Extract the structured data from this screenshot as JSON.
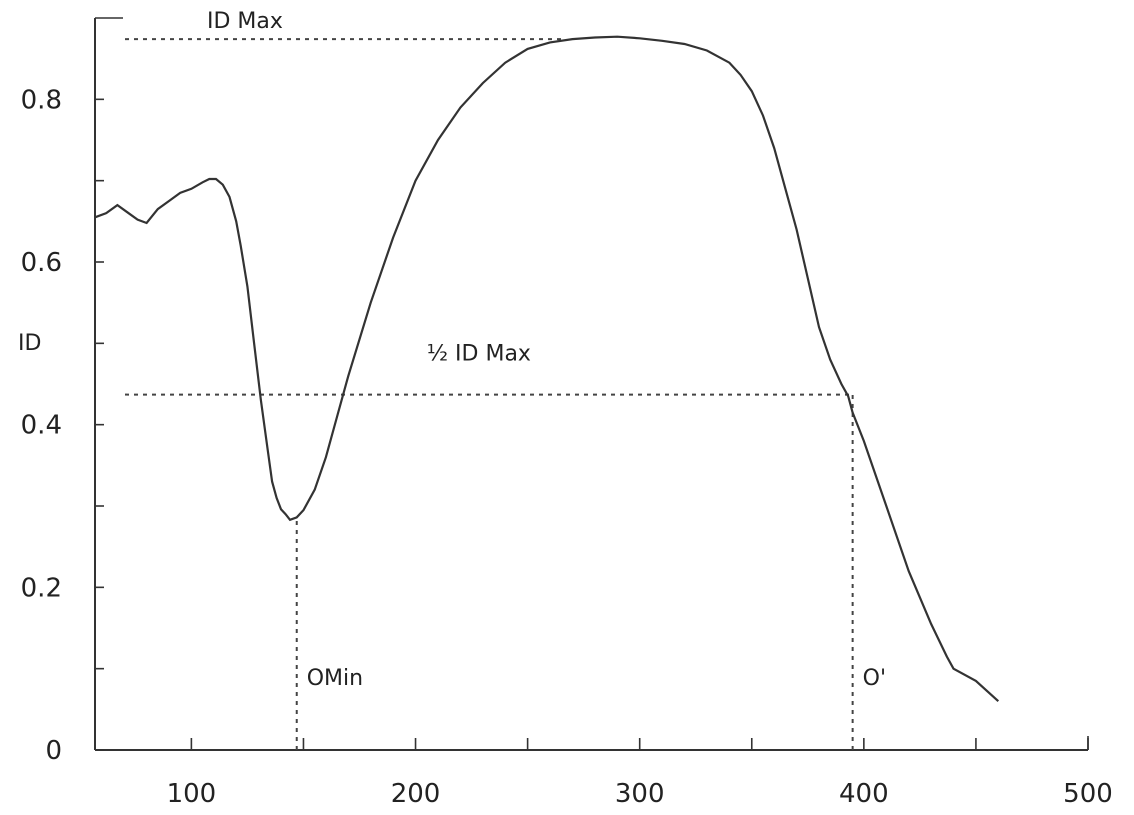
{
  "chart_data": {
    "type": "line",
    "title": "",
    "xlabel": "",
    "ylabel": "ID",
    "xlim": [
      57,
      500
    ],
    "ylim": [
      0,
      0.9
    ],
    "x_ticks": [
      100,
      200,
      300,
      400,
      500
    ],
    "x_tick_labels": [
      "100",
      "200",
      "300",
      "400",
      "500"
    ],
    "y_ticks": [
      0,
      0.2,
      0.4,
      0.6,
      0.8
    ],
    "y_tick_labels": [
      "0",
      "0.2",
      "0.4",
      "0.6",
      "0.8"
    ],
    "x_minor_ticks": [
      150,
      250,
      350,
      450
    ],
    "y_minor_ticks": [
      0.1,
      0.3,
      0.5,
      0.7
    ],
    "grid": false,
    "series": [
      {
        "x": [
          57,
          62,
          67,
          72,
          76,
          80,
          85,
          90,
          95,
          100,
          105,
          108,
          111,
          114,
          117,
          120,
          122,
          125,
          128,
          131,
          134,
          136,
          138,
          140,
          142,
          144,
          147,
          150,
          155,
          160,
          165,
          170,
          180,
          190,
          200,
          210,
          220,
          230,
          240,
          250,
          260,
          270,
          280,
          290,
          300,
          310,
          320,
          330,
          340,
          345,
          350,
          355,
          360,
          365,
          370,
          375,
          380,
          385,
          390,
          393,
          395,
          400,
          410,
          420,
          430,
          437,
          440,
          450,
          460
        ],
        "y": [
          0.655,
          0.66,
          0.67,
          0.66,
          0.652,
          0.648,
          0.665,
          0.675,
          0.685,
          0.69,
          0.698,
          0.702,
          0.702,
          0.695,
          0.68,
          0.65,
          0.62,
          0.57,
          0.5,
          0.43,
          0.37,
          0.33,
          0.31,
          0.296,
          0.29,
          0.283,
          0.286,
          0.295,
          0.32,
          0.36,
          0.41,
          0.46,
          0.55,
          0.63,
          0.7,
          0.75,
          0.79,
          0.82,
          0.845,
          0.862,
          0.87,
          0.874,
          0.876,
          0.877,
          0.875,
          0.872,
          0.868,
          0.86,
          0.845,
          0.83,
          0.81,
          0.78,
          0.74,
          0.69,
          0.64,
          0.58,
          0.52,
          0.48,
          0.45,
          0.435,
          0.415,
          0.38,
          0.3,
          0.22,
          0.155,
          0.115,
          0.1,
          0.085,
          0.06
        ]
      }
    ],
    "reference_lines": [
      {
        "label": "ID Max",
        "orientation": "horizontal",
        "y": 0.874,
        "x_from": 57,
        "x_to": 267
      },
      {
        "label": "½ ID Max",
        "orientation": "horizontal",
        "y": 0.437,
        "x_from": 57,
        "x_to": 395
      },
      {
        "label": "OMin",
        "orientation": "vertical",
        "x": 147,
        "y_from": 0,
        "y_to": 0.283
      },
      {
        "label": "O'",
        "orientation": "vertical",
        "x": 395,
        "y_from": 0,
        "y_to": 0.437
      }
    ]
  }
}
